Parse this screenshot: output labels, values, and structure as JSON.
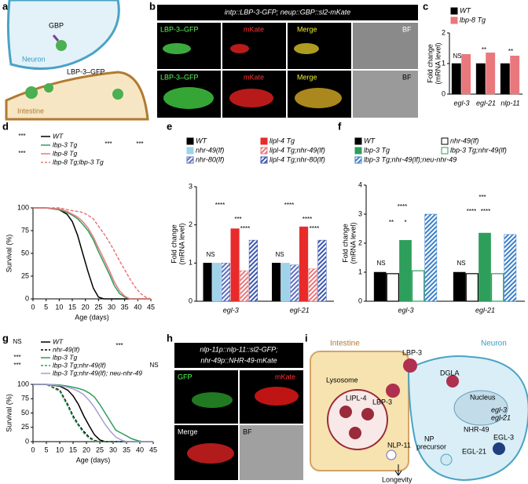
{
  "panel_labels": [
    "a",
    "b",
    "c",
    "d",
    "e",
    "f",
    "g",
    "h",
    "i"
  ],
  "panel_a": {
    "labels": [
      "GBP",
      "Neuron",
      "LBP-3–GFP",
      "Intestine"
    ]
  },
  "panel_b": {
    "title": "intp::LBP-3-GFP; neup::GBP::sl2-mKate",
    "channels": [
      "LBP-3–GFP",
      "mKate",
      "Merge",
      "BF"
    ]
  },
  "panel_h": {
    "title": [
      "nlp-11p::nlp-11::sl2-GFP;",
      "nhr-49p::NHR-49-mKate"
    ],
    "channels": [
      "GFP",
      "mKate",
      "Merge",
      "BF"
    ]
  },
  "panel_i": {
    "labels": [
      "Intestine",
      "Neuron",
      "Lysosome",
      "LIPL-4",
      "LBP-3",
      "DGLA",
      "LBP-3",
      "Nucleus",
      "egl-3",
      "egl-21",
      "NHR-49",
      "NP",
      "precursor",
      "EGL-3",
      "EGL-21",
      "NLP-11",
      "Longevity"
    ]
  },
  "chart_data": [
    {
      "type": "bar",
      "y_label": [
        "Fold change",
        "(mRNA level)"
      ],
      "categories": [
        "egl-3",
        "egl-21",
        "nlp-11"
      ],
      "series": [
        {
          "name": "WT",
          "color": "#000000",
          "values": [
            1,
            1,
            1
          ]
        },
        {
          "name": "lbp-8 Tg",
          "color": "#e8787c",
          "values": [
            1.3,
            1.35,
            1.25
          ]
        }
      ],
      "ylim": [
        0,
        2
      ],
      "yticks": [
        0,
        1,
        2
      ],
      "annotations": [
        "NS",
        "**",
        "**"
      ],
      "legend": "top-left"
    },
    {
      "type": "line",
      "x_label": "Age (days)",
      "y_label": [
        "Survival (%)"
      ],
      "x": [
        0,
        5,
        10,
        13,
        15,
        17,
        19,
        21,
        23,
        25,
        27,
        29,
        31,
        33,
        35,
        37,
        39,
        41,
        43,
        45
      ],
      "series": [
        {
          "name": "WT",
          "color": "#000000",
          "values": [
            100,
            100,
            98,
            93,
            85,
            70,
            50,
            30,
            12,
            2,
            0,
            0,
            0,
            0,
            0,
            0,
            0,
            0,
            0,
            0
          ]
        },
        {
          "name": "lbp-3 Tg",
          "color": "#2e9e5b",
          "values": [
            100,
            100,
            98,
            95,
            92,
            88,
            82,
            75,
            65,
            52,
            40,
            28,
            15,
            6,
            2,
            0,
            0,
            0,
            0,
            0
          ]
        },
        {
          "name": "lbp-8 Tg",
          "color": "#e8787c",
          "values": [
            100,
            100,
            99,
            96,
            93,
            90,
            85,
            78,
            68,
            56,
            44,
            32,
            19,
            9,
            3,
            0,
            0,
            0,
            0,
            0
          ]
        },
        {
          "name": "lbp-8 Tg;lbp-3 Tg",
          "color": "#e8787c",
          "dash": true,
          "values": [
            100,
            100,
            100,
            98,
            97,
            96,
            95,
            92,
            88,
            80,
            72,
            63,
            53,
            42,
            32,
            22,
            13,
            6,
            2,
            0
          ]
        }
      ],
      "xlim": [
        0,
        45
      ],
      "xticks": [
        0,
        5,
        10,
        15,
        20,
        25,
        30,
        35,
        40,
        45
      ],
      "ylim": [
        0,
        100
      ],
      "yticks": [
        0,
        25,
        50,
        75,
        100
      ],
      "annotations": [
        "***",
        "***",
        "***",
        "***"
      ],
      "legend": "top"
    },
    {
      "type": "bar",
      "y_label": [
        "Fold change",
        "(mRNA level)"
      ],
      "categories": [
        "egl-3",
        "egl-21"
      ],
      "series": [
        {
          "name": "WT",
          "color": "#000000",
          "values": [
            1,
            1
          ]
        },
        {
          "name": "nhr-49(lf)",
          "color": "#9fd3ea",
          "values": [
            1.0,
            1.0
          ]
        },
        {
          "name": "nhr-80(lf)",
          "color": "#5c6fc0",
          "hatch": true,
          "values": [
            1.0,
            0.95
          ]
        },
        {
          "name": "lipl-4 Tg",
          "color": "#e82a2a",
          "values": [
            1.9,
            1.95
          ]
        },
        {
          "name": "lipl-4 Tg;nhr-49(lf)",
          "color": "#e8787c",
          "hatch": true,
          "values": [
            0.8,
            0.85
          ]
        },
        {
          "name": "lipl-4 Tg;nhr-80(lf)",
          "color": "#3b57b0",
          "hatch": true,
          "values": [
            1.6,
            1.6
          ]
        }
      ],
      "ylim": [
        0,
        3
      ],
      "yticks": [
        0,
        1,
        2,
        3
      ],
      "annotations": [
        "NS",
        "****",
        "***",
        "****",
        "NS",
        "****",
        "****",
        "****"
      ],
      "legend": "top"
    },
    {
      "type": "bar",
      "y_label": [
        "Fold change",
        "(mRNA level)"
      ],
      "categories": [
        "egl-3",
        "egl-21"
      ],
      "series": [
        {
          "name": "WT",
          "color": "#000000",
          "values": [
            1,
            1
          ]
        },
        {
          "name": "nhr-49(lf)",
          "color": "#ffffff",
          "edge": "#000000",
          "values": [
            0.95,
            0.95
          ]
        },
        {
          "name": "lbp-3 Tg",
          "color": "#2e9e5b",
          "values": [
            2.1,
            2.35
          ]
        },
        {
          "name": "lbp-3 Tg;nhr-49(lf)",
          "color": "#ffffff",
          "edge": "#2e9e5b",
          "values": [
            1.05,
            0.95
          ]
        },
        {
          "name": "lbp-3 Tg;nhr-49(lf);neu-nhr-49",
          "color": "#3a7fc8",
          "hatch": true,
          "values": [
            3.0,
            2.3
          ]
        }
      ],
      "ylim": [
        0,
        4
      ],
      "yticks": [
        0,
        1,
        2,
        3,
        4
      ],
      "annotations": [
        "NS",
        "**",
        "*",
        "****",
        "NS",
        "****",
        "****",
        "***"
      ],
      "legend": "top"
    },
    {
      "type": "line",
      "x_label": "Age (days)",
      "y_label": [
        "Survival (%)"
      ],
      "x": [
        0,
        5,
        10,
        13,
        15,
        17,
        19,
        21,
        23,
        25,
        27,
        29,
        31,
        33,
        35,
        37,
        39,
        41,
        43,
        45
      ],
      "series": [
        {
          "name": "WT",
          "color": "#000000",
          "values": [
            100,
            100,
            97,
            90,
            80,
            65,
            45,
            28,
            12,
            3,
            0,
            0,
            0,
            0,
            0,
            0,
            0,
            0,
            0,
            0
          ]
        },
        {
          "name": "nhr-49(lf)",
          "color": "#000000",
          "dash": true,
          "values": [
            100,
            100,
            90,
            65,
            45,
            30,
            18,
            8,
            2,
            0,
            0,
            0,
            0,
            0,
            0,
            0,
            0,
            0,
            0,
            0
          ]
        },
        {
          "name": "lbp-3 Tg",
          "color": "#2e9e5b",
          "values": [
            100,
            100,
            99,
            97,
            95,
            93,
            90,
            85,
            78,
            65,
            50,
            35,
            20,
            15,
            10,
            5,
            2,
            0,
            0,
            0
          ]
        },
        {
          "name": "lbp-3 Tg;nhr-49(lf)",
          "color": "#2e9e5b",
          "dash": true,
          "values": [
            100,
            100,
            88,
            62,
            42,
            28,
            15,
            6,
            1,
            0,
            0,
            0,
            0,
            0,
            0,
            0,
            0,
            0,
            0,
            0
          ]
        },
        {
          "name": "lbp-3 Tg;nhr-49(lf); neu-nhr-49",
          "color": "#a99bd6",
          "values": [
            100,
            100,
            98,
            95,
            92,
            88,
            82,
            72,
            60,
            45,
            30,
            18,
            8,
            3,
            0,
            0,
            0,
            0,
            0,
            0
          ]
        }
      ],
      "xlim": [
        0,
        45
      ],
      "xticks": [
        0,
        5,
        10,
        15,
        20,
        25,
        30,
        35,
        40,
        45
      ],
      "ylim": [
        0,
        100
      ],
      "yticks": [
        0,
        25,
        50,
        75,
        100
      ],
      "annotations": [
        "NS",
        "***",
        "NS",
        "***",
        "***"
      ],
      "legend": "top"
    }
  ]
}
